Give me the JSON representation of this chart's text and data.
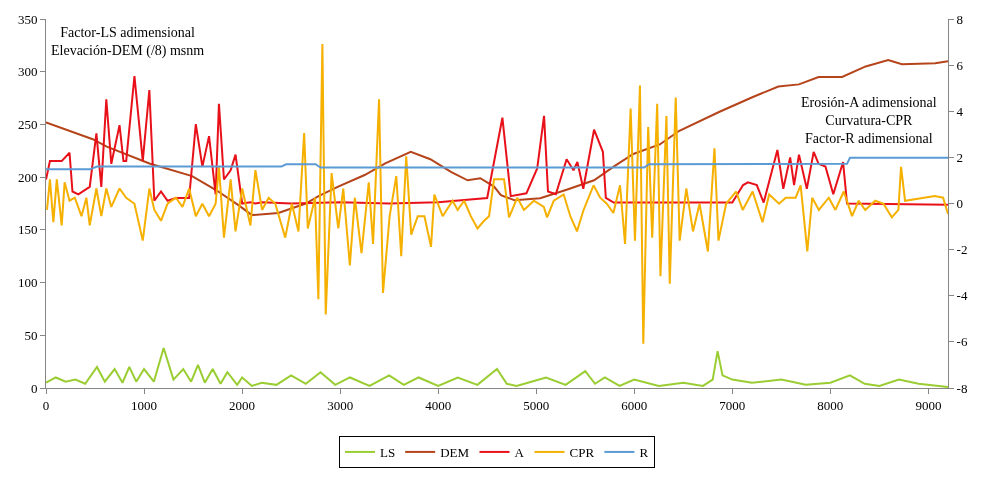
{
  "chart_data": {
    "type": "line",
    "ylabel": "Factor-LS adimensional\nElevación-DEM (/8) msnm",
    "y2label": "Erosión-A adimensional\nCurvatura-CPR\nFactor-R adimensional",
    "xlim": [
      0,
      9200
    ],
    "xticks": [
      0,
      1000,
      2000,
      3000,
      4000,
      5000,
      6000,
      7000,
      8000,
      9000
    ],
    "ylim": [
      0,
      350
    ],
    "yticks": [
      0,
      50,
      100,
      150,
      200,
      250,
      300,
      350
    ],
    "y2lim": [
      -8,
      8
    ],
    "y2ticks": [
      -8,
      -6,
      -4,
      -2,
      0,
      2,
      4,
      6,
      8
    ],
    "legend": "bottom",
    "marker": "none",
    "line_style": "solid",
    "series": [
      {
        "name": "LS",
        "color": "#9acd32",
        "x": [
          0,
          100,
          200,
          300,
          400,
          520,
          600,
          700,
          780,
          850,
          920,
          1000,
          1100,
          1200,
          1300,
          1400,
          1480,
          1550,
          1620,
          1700,
          1780,
          1850,
          1950,
          2000,
          2100,
          2200,
          2350,
          2500,
          2650,
          2800,
          2950,
          3100,
          3300,
          3500,
          3650,
          3800,
          4000,
          4200,
          4400,
          4600,
          4700,
          4800,
          4950,
          5100,
          5300,
          5500,
          5600,
          5700,
          5850,
          6000,
          6250,
          6500,
          6700,
          6800,
          6850,
          6900,
          7000,
          7200,
          7500,
          7750,
          8000,
          8200,
          8350,
          8500,
          8700,
          8900,
          9200
        ],
        "values": [
          5,
          10,
          6,
          8,
          4,
          20,
          6,
          18,
          5,
          20,
          6,
          18,
          6,
          38,
          8,
          18,
          6,
          22,
          5,
          18,
          4,
          15,
          3,
          10,
          2,
          5,
          3,
          12,
          4,
          15,
          3,
          10,
          2,
          12,
          3,
          10,
          2,
          10,
          3,
          18,
          4,
          2,
          6,
          10,
          3,
          16,
          4,
          10,
          2,
          8,
          2,
          5,
          2,
          8,
          35,
          12,
          8,
          5,
          8,
          3,
          5,
          12,
          4,
          2,
          8,
          4,
          1
        ]
      },
      {
        "name": "DEM",
        "color": "#b5441b",
        "x": [
          0,
          477,
          620,
          1055,
          1490,
          1730,
          1970,
          2100,
          2370,
          2650,
          2780,
          2980,
          3250,
          3460,
          3720,
          3920,
          4130,
          4300,
          4430,
          4570,
          4640,
          4780,
          5040,
          5310,
          5590,
          5790,
          5990,
          6260,
          6460,
          6870,
          7210,
          7470,
          7680,
          7880,
          8120,
          8360,
          8590,
          8730,
          9070,
          9200
        ],
        "values": [
          252,
          236,
          229,
          213,
          201,
          188,
          173,
          164,
          166,
          175,
          182,
          191,
          202,
          213,
          224,
          217,
          205,
          197,
          199,
          191,
          183,
          178,
          180,
          188,
          197,
          210,
          222,
          231,
          244,
          262,
          276,
          286,
          288,
          295,
          295,
          305,
          311,
          307,
          308,
          310
        ]
      },
      {
        "name": "A",
        "color": "#e8111a",
        "axis": "y2",
        "x": [
          0,
          40,
          160,
          240,
          270,
          330,
          446,
          514,
          564,
          615,
          666,
          750,
          790,
          818,
          902,
          987,
          1054,
          1105,
          1173,
          1240,
          1325,
          1460,
          1528,
          1595,
          1663,
          1730,
          1764,
          1815,
          1883,
          1933,
          2001,
          2085,
          2136,
          2204,
          2500,
          3000,
          3500,
          4000,
          4500,
          4655,
          4740,
          4900,
          5010,
          5080,
          5120,
          5200,
          5310,
          5380,
          5420,
          5480,
          5590,
          5680,
          5710,
          5790,
          6500,
          7000,
          7110,
          7160,
          7250,
          7320,
          7460,
          7520,
          7590,
          7630,
          7680,
          7760,
          7830,
          7880,
          7950,
          8030,
          8130,
          8170,
          9200
        ],
        "values": [
          1.04,
          1.84,
          1.84,
          2.2,
          0.52,
          0.4,
          0.72,
          3.04,
          0.72,
          4.52,
          1.72,
          3.4,
          1.84,
          1.84,
          5.52,
          1.84,
          4.92,
          0.12,
          0.52,
          0.12,
          0.24,
          0.24,
          3.44,
          1.6,
          2.92,
          0.4,
          4.32,
          1.04,
          1.44,
          2.12,
          0,
          0.05,
          0,
          0.05,
          0,
          0.05,
          0,
          0.05,
          0.24,
          3.72,
          0.32,
          0.44,
          1.52,
          3.8,
          0.52,
          0.4,
          1.92,
          1.44,
          1.8,
          0.64,
          3.2,
          2.24,
          0.24,
          0.04,
          0.04,
          0.04,
          0.8,
          0.92,
          0.8,
          0.04,
          2.32,
          0.64,
          2.0,
          0.8,
          2.12,
          0.64,
          2.24,
          1.72,
          1.6,
          0.4,
          1.8,
          0,
          -0.05
        ]
      },
      {
        "name": "CPR",
        "color": "#f5b000",
        "axis": "y2",
        "x": [
          10,
          40,
          75,
          110,
          160,
          190,
          240,
          294,
          362,
          412,
          446,
          514,
          564,
          615,
          666,
          750,
          818,
          902,
          987,
          1054,
          1105,
          1173,
          1240,
          1325,
          1392,
          1460,
          1528,
          1595,
          1663,
          1730,
          1764,
          1815,
          1883,
          1933,
          2001,
          2085,
          2136,
          2204,
          2271,
          2339,
          2440,
          2508,
          2575,
          2633,
          2670,
          2744,
          2778,
          2819,
          2853,
          2913,
          2981,
          3032,
          3099,
          3150,
          3218,
          3292,
          3336,
          3397,
          3437,
          3505,
          3573,
          3623,
          3674,
          3725,
          3792,
          3860,
          3927,
          3961,
          4046,
          4147,
          4198,
          4265,
          4333,
          4401,
          4468,
          4519,
          4570,
          4672,
          4723,
          4807,
          4875,
          4976,
          5078,
          5111,
          5179,
          5280,
          5348,
          5416,
          5483,
          5585,
          5652,
          5720,
          5787,
          5855,
          5906,
          5963,
          6007,
          6058,
          6092,
          6142,
          6183,
          6234,
          6267,
          6328,
          6362,
          6423,
          6463,
          6531,
          6599,
          6666,
          6751,
          6818,
          6859,
          6937,
          7038,
          7106,
          7207,
          7308,
          7376,
          7477,
          7545,
          7646,
          7697,
          7765,
          7815,
          7883,
          7984,
          8052,
          8137,
          8221,
          8289,
          8356,
          8458,
          8542,
          8627,
          8694,
          8721,
          8762,
          9066,
          9150,
          9200
        ],
        "values": [
          -0.28,
          1.05,
          -0.81,
          1.05,
          -0.95,
          0.92,
          0.12,
          0.25,
          -0.55,
          0.25,
          -0.95,
          0.65,
          -0.55,
          0.65,
          -0.15,
          0.65,
          0.25,
          -0.01,
          -1.61,
          0.65,
          -0.28,
          -0.75,
          -0.01,
          0.25,
          -0.15,
          0.65,
          -0.55,
          -0.01,
          -0.55,
          -0.01,
          1.59,
          -1.48,
          1.05,
          -1.21,
          0.65,
          -0.95,
          1.45,
          -0.28,
          0.25,
          -0.01,
          -1.48,
          -0.01,
          -1.21,
          3.05,
          -1.08,
          0.25,
          -4.15,
          6.92,
          -4.81,
          1.32,
          -1.08,
          0.65,
          -2.68,
          0.25,
          -2.15,
          0.92,
          -1.75,
          4.52,
          -3.88,
          -0.55,
          1.19,
          -2.28,
          2.05,
          -1.35,
          -0.55,
          -0.55,
          -1.88,
          0.39,
          -0.55,
          0.12,
          -0.28,
          0.12,
          -0.55,
          -1.08,
          -0.75,
          -0.55,
          1.05,
          1.05,
          -0.6,
          0.25,
          -0.28,
          0.12,
          -0.15,
          -0.6,
          0.12,
          0.39,
          -0.55,
          -1.21,
          -0.28,
          0.79,
          0.25,
          -0.01,
          -0.41,
          0.79,
          -1.75,
          4.12,
          -1.61,
          5.12,
          -6.08,
          3.32,
          -1.48,
          4.32,
          -3.15,
          3.79,
          -3.48,
          4.59,
          -1.61,
          0.65,
          -1.21,
          -0.01,
          -2.08,
          2.39,
          -1.61,
          -0.01,
          0.52,
          -0.28,
          0.52,
          -0.81,
          0.39,
          -0.01,
          0.25,
          0.25,
          0.79,
          -2.08,
          0.25,
          -0.28,
          0.25,
          -0.28,
          0.52,
          -0.55,
          0.12,
          -0.28,
          0.12,
          -0.01,
          -0.6,
          -0.28,
          1.59,
          0.12,
          0.32,
          0.25,
          -0.45
        ]
      },
      {
        "name": "R",
        "color": "#5b9bd5",
        "axis": "y2",
        "x": [
          0,
          450,
          520,
          2400,
          2450,
          2750,
          2800,
          6100,
          6150,
          8170,
          8200,
          9200
        ],
        "values": [
          1.48,
          1.48,
          1.6,
          1.6,
          1.7,
          1.7,
          1.56,
          1.56,
          1.7,
          1.72,
          1.98,
          1.98
        ]
      }
    ]
  }
}
